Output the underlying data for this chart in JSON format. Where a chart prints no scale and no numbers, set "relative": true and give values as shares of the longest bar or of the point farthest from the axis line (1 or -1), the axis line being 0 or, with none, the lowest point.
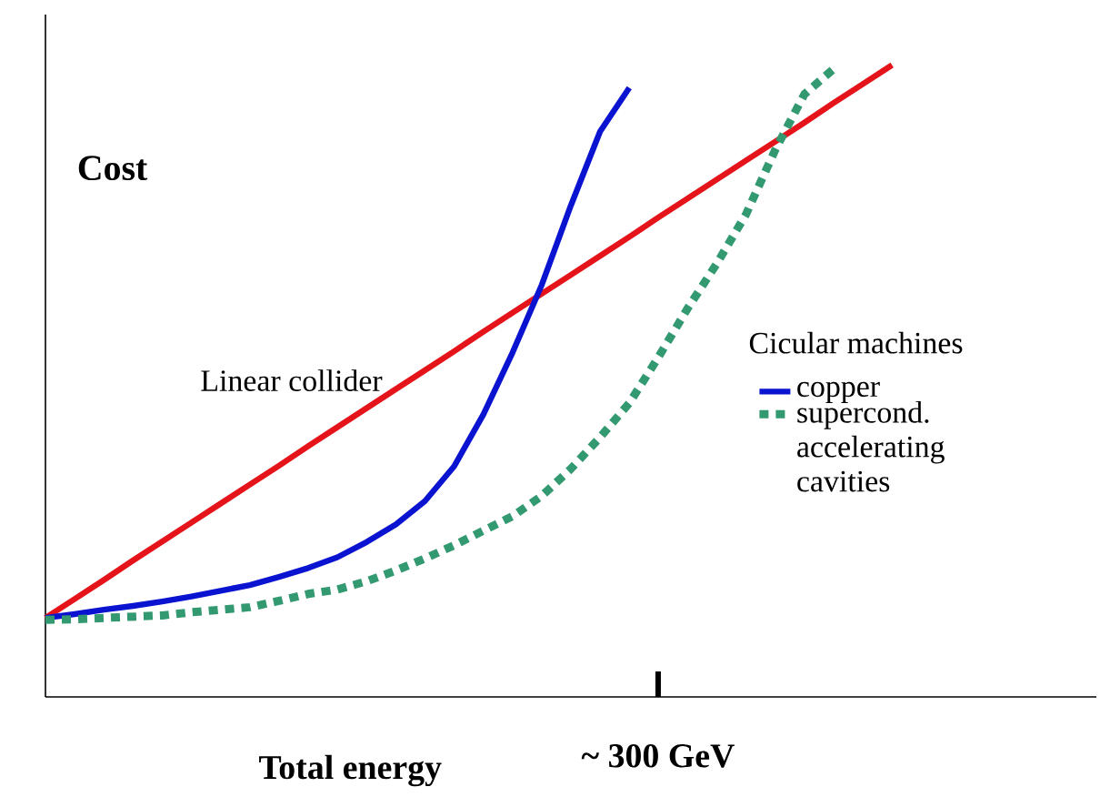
{
  "chart_data": {
    "type": "line",
    "relative": true,
    "ylabel": "Cost",
    "xlabel": "Total energy",
    "legend_title": "Cicular machines",
    "legend": "right",
    "marker": "none",
    "annotations": [
      "~ 300 GeV"
    ],
    "categories": [
      null,
      null,
      null,
      null,
      null,
      null,
      null,
      null,
      null,
      null,
      null,
      null,
      null,
      null,
      null,
      null,
      null,
      null,
      null,
      null,
      null,
      null,
      null,
      null,
      null,
      null,
      null,
      null,
      null,
      null,
      null,
      null,
      null,
      null,
      null,
      null,
      null
    ],
    "series": [
      {
        "name": "Linear collider",
        "color": "#e5141b",
        "line_style": "solid",
        "values": [
          0.125,
          0.155,
          0.185,
          0.216,
          0.246,
          0.276,
          0.306,
          0.336,
          0.366,
          0.397,
          0.427,
          0.457,
          0.487,
          0.517,
          0.547,
          0.578,
          0.608,
          0.638,
          0.668,
          0.698,
          0.728,
          0.759,
          0.789,
          0.819,
          0.849,
          0.879,
          0.909,
          0.94,
          0.97,
          1.0,
          null,
          null,
          null,
          null,
          null,
          null,
          null
        ]
      },
      {
        "name": "copper",
        "color": "#0a14d0",
        "line_style": "solid",
        "values": [
          0.125,
          0.131,
          0.138,
          0.144,
          0.151,
          0.159,
          0.168,
          0.177,
          0.19,
          0.204,
          0.221,
          0.245,
          0.273,
          0.31,
          0.365,
          0.447,
          0.545,
          0.652,
          0.778,
          0.895,
          0.964,
          null,
          null,
          null,
          null,
          null,
          null,
          null,
          null,
          null,
          null,
          null,
          null,
          null,
          null,
          null,
          null
        ]
      },
      {
        "name": "supercond. accelerating cavities",
        "color": "#339970",
        "line_style": "dashed",
        "values": [
          0.122,
          0.123,
          0.125,
          0.127,
          0.129,
          0.134,
          0.138,
          0.142,
          0.152,
          0.163,
          0.17,
          0.183,
          0.2,
          0.219,
          0.24,
          0.263,
          0.286,
          0.318,
          0.361,
          0.411,
          0.465,
          0.538,
          0.615,
          0.686,
          0.764,
          0.866,
          0.954,
          0.994,
          null,
          null,
          null,
          null,
          null,
          null,
          null,
          null,
          null
        ]
      }
    ]
  }
}
